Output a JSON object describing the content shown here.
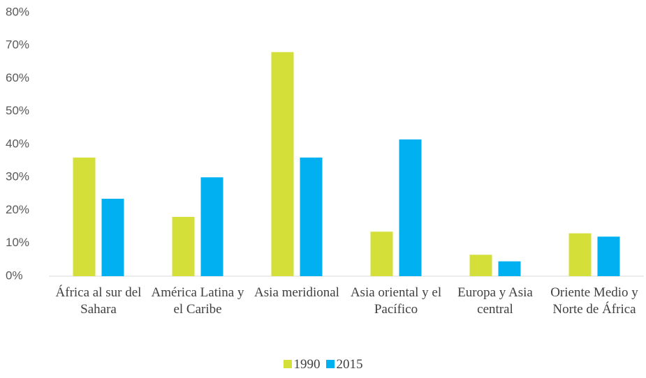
{
  "chart_data": {
    "type": "bar",
    "categories": [
      "África al sur del Sahara",
      "América Latina y el Caribe",
      "Asia meridional",
      "Asia oriental y el Pacífico",
      "Europa y Asia central",
      "Oriente Medio y Norte de África"
    ],
    "series": [
      {
        "name": "1990",
        "color": "#d4df3a",
        "values": [
          36,
          18,
          68,
          13.5,
          6.5,
          13
        ]
      },
      {
        "name": "2015",
        "color": "#00b0f0",
        "values": [
          23.5,
          30,
          36,
          41.5,
          4.5,
          12
        ]
      }
    ],
    "ylim": [
      0,
      80
    ],
    "yticks": [
      {
        "value": 0,
        "label": "0%"
      },
      {
        "value": 10,
        "label": "10%"
      },
      {
        "value": 20,
        "label": "20%"
      },
      {
        "value": 30,
        "label": "30%"
      },
      {
        "value": 40,
        "label": "40%"
      },
      {
        "value": 50,
        "label": "50%"
      },
      {
        "value": 60,
        "label": "60%"
      },
      {
        "value": 70,
        "label": "70%"
      },
      {
        "value": 80,
        "label": "80%"
      }
    ],
    "grid": false,
    "legend": "bottom"
  }
}
